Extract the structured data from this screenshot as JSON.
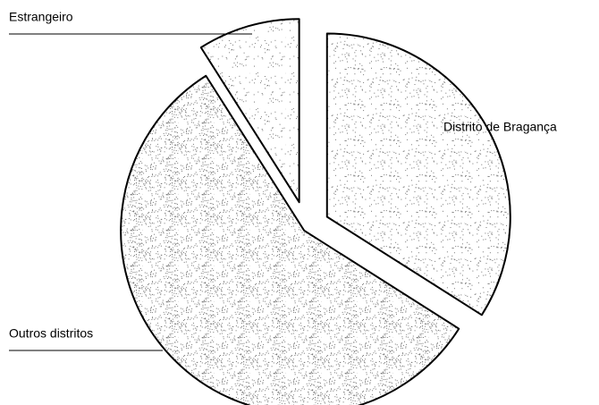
{
  "chart_data": {
    "type": "pie",
    "categories": [
      "Distrito de Bragança",
      "Outros distritos",
      "Estrangeiro"
    ],
    "values": [
      34,
      57,
      9
    ]
  }
}
